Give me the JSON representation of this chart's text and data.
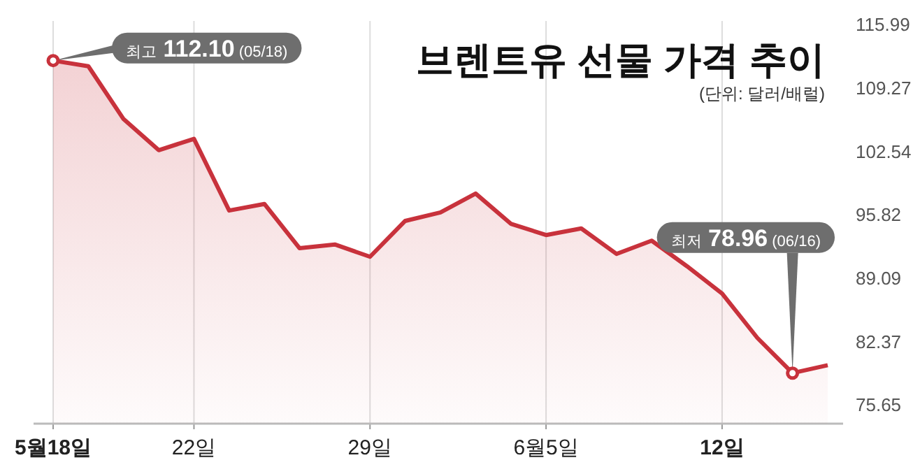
{
  "chart_data": {
    "type": "area",
    "title": "브렌트유 선물 가격 추이",
    "subtitle": "(단위: 달러/배럴)",
    "categories": [
      "5월18일",
      null,
      null,
      null,
      "22일",
      null,
      null,
      null,
      null,
      "29일",
      null,
      null,
      null,
      null,
      "6월5일",
      null,
      null,
      null,
      null,
      "12일",
      null,
      null,
      null
    ],
    "series": [
      {
        "color": "#c8323c",
        "values": [
          112.1,
          111.5,
          105.9,
          102.6,
          103.8,
          96.2,
          96.9,
          92.2,
          92.6,
          91.3,
          95.1,
          96.0,
          98.0,
          94.8,
          93.6,
          94.3,
          91.6,
          93.0,
          90.3,
          87.4,
          82.7,
          78.96,
          79.8
        ]
      }
    ],
    "ylim": [
      73.6,
      116.3
    ],
    "yticks": [
      115.99,
      109.27,
      102.54,
      95.82,
      89.09,
      82.37,
      75.65
    ],
    "grid": "x",
    "marker": "none",
    "line_style": "solid",
    "annotations": [
      {
        "text": "최고 112.10 (05/18)",
        "x": "5월18일",
        "y": 112.1
      },
      "최저 78.96 (06/16)"
    ]
  }
}
